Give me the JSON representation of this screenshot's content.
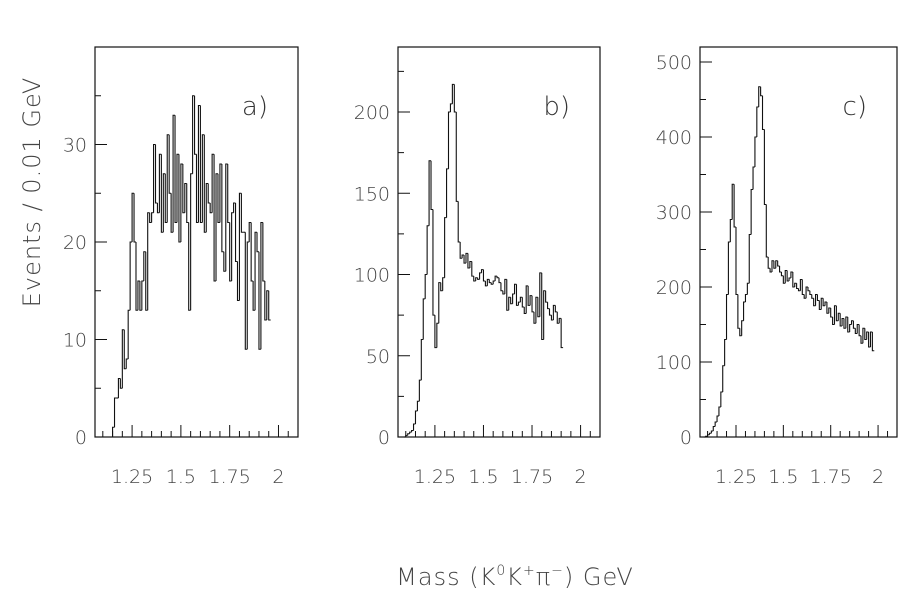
{
  "figure": {
    "ylabel": "Events / 0.01 GeV",
    "xlabel_parts": {
      "prefix": "Mass (K",
      "k0_sup": "0",
      "k": "K",
      "kplus_sup": "+",
      "pi": "π",
      "pi_sup": "−",
      "suffix": ") GeV"
    }
  },
  "chart_data": [
    {
      "type": "bar",
      "panel_label": "a)",
      "xlim": [
        1.06,
        2.1
      ],
      "ylim": [
        0,
        40
      ],
      "xticks": [
        1.25,
        1.5,
        1.75,
        2
      ],
      "xtick_labels": [
        "1.25",
        "1.5",
        "1.75",
        "2"
      ],
      "yticks": [
        0,
        10,
        20,
        30
      ],
      "ytick_labels": [
        "0",
        "10",
        "20",
        "30"
      ],
      "bin_start": 1.15,
      "bin_width": 0.01,
      "values": [
        1,
        4,
        4,
        6,
        5,
        11,
        7,
        8,
        13,
        20,
        25,
        20,
        13,
        16,
        13,
        16,
        19,
        13,
        23,
        22,
        23,
        30,
        24,
        23,
        29,
        21,
        27,
        22,
        31,
        25,
        21,
        33,
        22,
        29,
        20,
        28,
        23,
        26,
        22,
        13,
        27,
        35,
        29,
        22,
        34,
        22,
        31,
        21,
        26,
        24,
        23,
        29,
        16,
        27,
        22,
        28,
        19,
        17,
        28,
        22,
        16,
        23,
        24,
        18,
        14,
        25,
        21,
        21,
        9,
        20,
        22,
        16,
        13,
        21,
        19,
        9,
        22,
        16,
        12,
        15,
        12
      ]
    },
    {
      "type": "bar",
      "panel_label": "b)",
      "xlim": [
        1.06,
        2.1
      ],
      "ylim": [
        0,
        240
      ],
      "xticks": [
        1.25,
        1.5,
        1.75,
        2
      ],
      "xtick_labels": [
        "1.25",
        "1.5",
        "1.75",
        "2"
      ],
      "yticks": [
        0,
        50,
        100,
        150,
        200
      ],
      "ytick_labels": [
        "0",
        "50",
        "100",
        "150",
        "200"
      ],
      "bin_start": 1.09,
      "bin_width": 0.01,
      "values": [
        0,
        1,
        2,
        3,
        4,
        8,
        16,
        22,
        35,
        60,
        85,
        100,
        130,
        170,
        140,
        75,
        55,
        70,
        95,
        90,
        98,
        135,
        165,
        200,
        205,
        217,
        200,
        145,
        120,
        110,
        112,
        107,
        113,
        104,
        108,
        99,
        96,
        98,
        97,
        101,
        103,
        96,
        93,
        97,
        95,
        94,
        96,
        99,
        98,
        95,
        90,
        88,
        97,
        78,
        86,
        82,
        88,
        94,
        81,
        83,
        86,
        80,
        76,
        93,
        81,
        87,
        77,
        70,
        86,
        74,
        101,
        60,
        90,
        83,
        79,
        75,
        72,
        81,
        77,
        70,
        73,
        55
      ]
    },
    {
      "type": "bar",
      "panel_label": "c)",
      "xlim": [
        1.06,
        2.1
      ],
      "ylim": [
        0,
        520
      ],
      "xticks": [
        1.25,
        1.5,
        1.75,
        2
      ],
      "xtick_labels": [
        "1.25",
        "1.5",
        "1.75",
        "2"
      ],
      "yticks": [
        0,
        100,
        200,
        300,
        400,
        500
      ],
      "ytick_labels": [
        "0",
        "100",
        "200",
        "300",
        "400",
        "500"
      ],
      "bin_start": 1.08,
      "bin_width": 0.01,
      "values": [
        0,
        1,
        3,
        5,
        8,
        14,
        20,
        28,
        40,
        60,
        95,
        130,
        190,
        260,
        290,
        337,
        280,
        190,
        145,
        135,
        155,
        180,
        190,
        205,
        270,
        330,
        360,
        400,
        440,
        467,
        455,
        410,
        310,
        240,
        225,
        220,
        235,
        225,
        235,
        228,
        220,
        215,
        205,
        222,
        208,
        212,
        220,
        200,
        205,
        198,
        195,
        210,
        190,
        185,
        200,
        195,
        190,
        185,
        175,
        190,
        182,
        170,
        185,
        175,
        180,
        165,
        172,
        160,
        150,
        175,
        155,
        165,
        148,
        158,
        145,
        160,
        140,
        150,
        155,
        145,
        138,
        150,
        135,
        125,
        145,
        130,
        140,
        120,
        140,
        115
      ]
    }
  ]
}
